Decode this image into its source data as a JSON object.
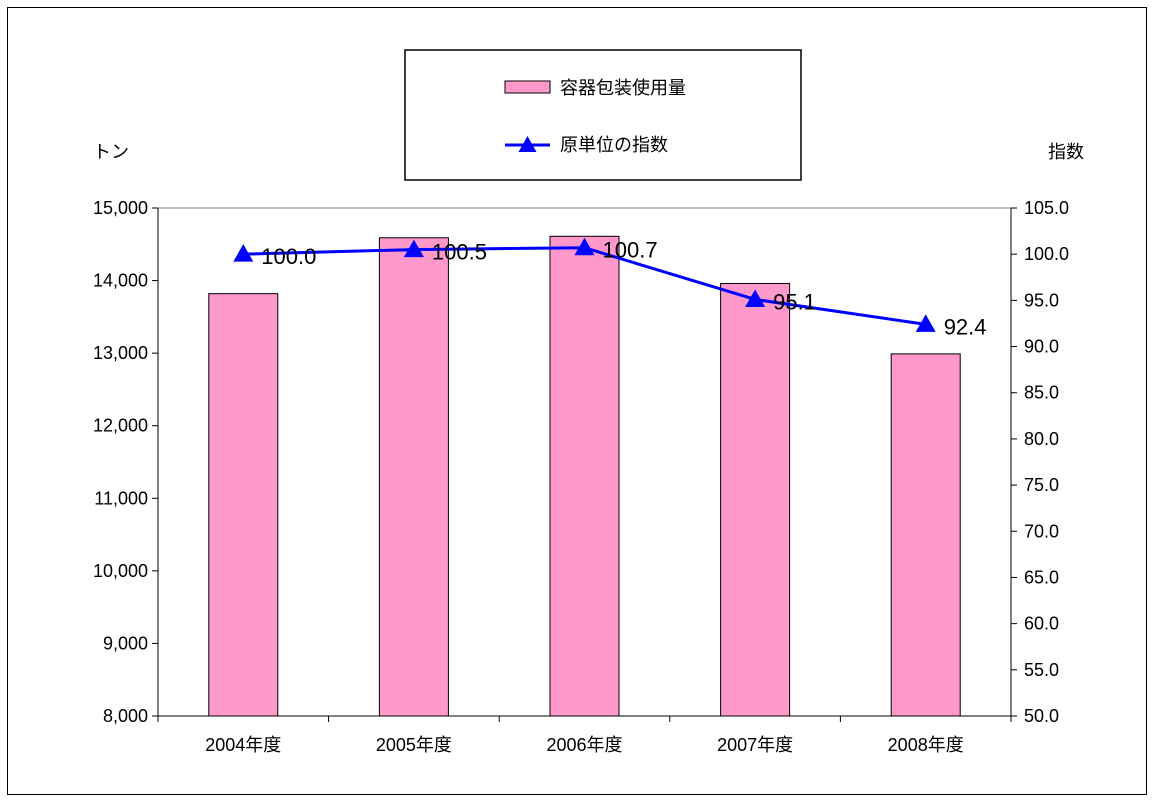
{
  "chart_data": {
    "type": "bar",
    "categories": [
      "2004年度",
      "2005年度",
      "2006年度",
      "2007年度",
      "2008年度"
    ],
    "series": [
      {
        "name": "容器包装使用量",
        "type": "bar",
        "axis": "left",
        "color": "#FF99CC",
        "values": [
          13820,
          14590,
          14610,
          13960,
          12990
        ]
      },
      {
        "name": "原単位の指数",
        "type": "line",
        "axis": "right",
        "color": "#0000FF",
        "marker": "triangle",
        "values": [
          100.0,
          100.5,
          100.7,
          95.1,
          92.4
        ],
        "labels": [
          "100.0",
          "100.5",
          "100.7",
          "95.1",
          "92.4"
        ]
      }
    ],
    "y_left": {
      "label": "トン",
      "ylim": [
        8000,
        15000
      ],
      "ticks": [
        8000,
        9000,
        10000,
        11000,
        12000,
        13000,
        14000,
        15000
      ],
      "tick_labels": [
        "8,000",
        "9,000",
        "10,000",
        "11,000",
        "12,000",
        "13,000",
        "14,000",
        "15,000"
      ]
    },
    "y_right": {
      "label": "指数",
      "ylim": [
        50,
        105
      ],
      "ticks": [
        50,
        55,
        60,
        65,
        70,
        75,
        80,
        85,
        90,
        95,
        100,
        105
      ],
      "tick_labels": [
        "50.0",
        "55.0",
        "60.0",
        "65.0",
        "70.0",
        "75.0",
        "80.0",
        "85.0",
        "90.0",
        "95.0",
        "100.0",
        "105.0"
      ]
    },
    "legend": {
      "position": "top-center",
      "entries": [
        "容器包装使用量",
        "原単位の指数"
      ]
    },
    "grid": false
  }
}
